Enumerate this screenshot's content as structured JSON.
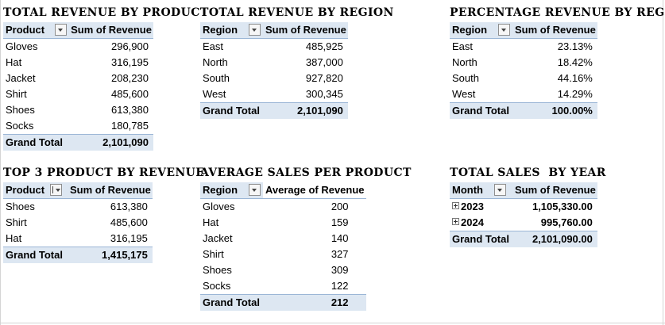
{
  "product_revenue": {
    "title": "TOTAL REVENUE BY PRODUCT",
    "col1": "Product",
    "col2": "Sum of Revenue",
    "rows": [
      {
        "label": "Gloves",
        "value": "296,900"
      },
      {
        "label": "Hat",
        "value": "316,195"
      },
      {
        "label": "Jacket",
        "value": "208,230"
      },
      {
        "label": "Shirt",
        "value": "485,600"
      },
      {
        "label": "Shoes",
        "value": "613,380"
      },
      {
        "label": "Socks",
        "value": "180,785"
      }
    ],
    "total_label": "Grand Total",
    "total_value": "2,101,090"
  },
  "region_revenue": {
    "title": "TOTAL REVENUE BY REGION",
    "col1": "Region",
    "col2": "Sum of Revenue",
    "rows": [
      {
        "label": "East",
        "value": "485,925"
      },
      {
        "label": "North",
        "value": "387,000"
      },
      {
        "label": "South",
        "value": "927,820"
      },
      {
        "label": "West",
        "value": "300,345"
      }
    ],
    "total_label": "Grand Total",
    "total_value": "2,101,090"
  },
  "region_percentage": {
    "title": "PERCENTAGE REVENUE BY REGION",
    "col1": "Region",
    "col2": "Sum of Revenue",
    "rows": [
      {
        "label": "East",
        "value": "23.13%"
      },
      {
        "label": "North",
        "value": "18.42%"
      },
      {
        "label": "South",
        "value": "44.16%"
      },
      {
        "label": "West",
        "value": "14.29%"
      }
    ],
    "total_label": "Grand Total",
    "total_value": "100.00%"
  },
  "top3_product": {
    "title": "TOP 3 PRODUCT BY REVENUE",
    "col1": "Product",
    "col2": "Sum of Revenue",
    "rows": [
      {
        "label": "Shoes",
        "value": "613,380"
      },
      {
        "label": "Shirt",
        "value": "485,600"
      },
      {
        "label": "Hat",
        "value": "316,195"
      }
    ],
    "total_label": "Grand Total",
    "total_value": "1,415,175"
  },
  "avg_sales": {
    "title": "AVERAGE SALES PER PRODUCT",
    "col1": "Region",
    "col2": "Average of Revenue",
    "rows": [
      {
        "label": "Gloves",
        "value": "200"
      },
      {
        "label": "Hat",
        "value": "159"
      },
      {
        "label": "Jacket",
        "value": "140"
      },
      {
        "label": "Shirt",
        "value": "327"
      },
      {
        "label": "Shoes",
        "value": "309"
      },
      {
        "label": "Socks",
        "value": "122"
      }
    ],
    "total_label": "Grand Total",
    "total_value": "212"
  },
  "sales_by_year": {
    "title": "TOTAL SALES  BY YEAR",
    "col1": "Month",
    "col2": "Sum of Revenue",
    "rows": [
      {
        "label": "2023",
        "value": "1,105,330.00"
      },
      {
        "label": "2024",
        "value": "995,760.00"
      }
    ],
    "total_label": "Grand Total",
    "total_value": "2,101,090.00"
  }
}
